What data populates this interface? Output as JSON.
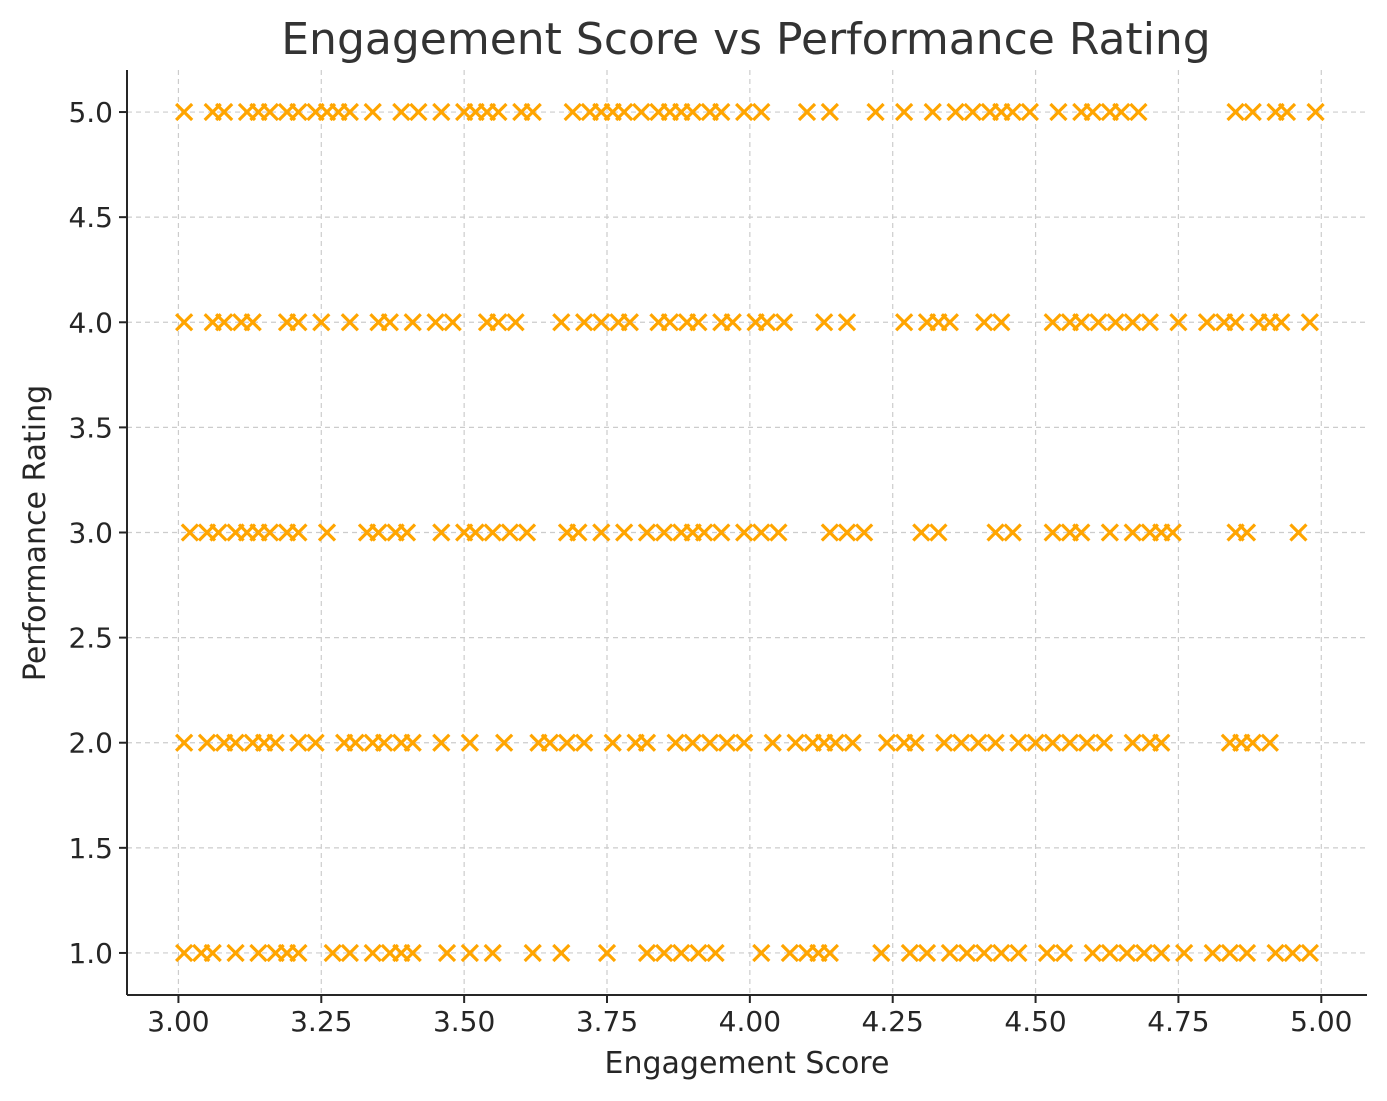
{
  "chart_data": {
    "type": "scatter",
    "title": "Engagement Score vs Performance Rating",
    "xlabel": "Engagement Score",
    "ylabel": "Performance Rating",
    "xlim": [
      2.91,
      5.08
    ],
    "ylim": [
      0.8,
      5.2
    ],
    "xticks": [
      "3.00",
      "3.25",
      "3.50",
      "3.75",
      "4.00",
      "4.25",
      "4.50",
      "4.75",
      "5.00"
    ],
    "yticks": [
      "1.0",
      "1.5",
      "2.0",
      "2.5",
      "3.0",
      "3.5",
      "4.0",
      "4.5",
      "5.0"
    ],
    "grid": true,
    "marker": "x",
    "color": "#FFA500",
    "points_by_rating": {
      "5": [
        3.01,
        3.06,
        3.08,
        3.12,
        3.14,
        3.16,
        3.19,
        3.21,
        3.24,
        3.26,
        3.28,
        3.3,
        3.34,
        3.39,
        3.42,
        3.46,
        3.5,
        3.52,
        3.54,
        3.56,
        3.6,
        3.62,
        3.69,
        3.72,
        3.74,
        3.76,
        3.78,
        3.81,
        3.84,
        3.86,
        3.88,
        3.9,
        3.93,
        3.95,
        3.99,
        4.02,
        4.1,
        4.14,
        4.22,
        4.27,
        4.32,
        4.36,
        4.39,
        4.42,
        4.44,
        4.46,
        4.49,
        4.54,
        4.58,
        4.6,
        4.63,
        4.65,
        4.68,
        4.85,
        4.88,
        4.92,
        4.94,
        4.99
      ],
      "4": [
        3.01,
        3.06,
        3.08,
        3.11,
        3.13,
        3.19,
        3.21,
        3.25,
        3.3,
        3.35,
        3.37,
        3.41,
        3.45,
        3.48,
        3.54,
        3.56,
        3.59,
        3.67,
        3.71,
        3.74,
        3.77,
        3.79,
        3.84,
        3.86,
        3.89,
        3.91,
        3.95,
        3.97,
        4.01,
        4.03,
        4.06,
        4.13,
        4.17,
        4.27,
        4.31,
        4.33,
        4.35,
        4.41,
        4.44,
        4.53,
        4.56,
        4.58,
        4.61,
        4.64,
        4.67,
        4.7,
        4.75,
        4.8,
        4.83,
        4.85,
        4.89,
        4.91,
        4.93,
        4.98
      ],
      "3": [
        3.02,
        3.05,
        3.07,
        3.1,
        3.12,
        3.14,
        3.16,
        3.19,
        3.21,
        3.26,
        3.33,
        3.35,
        3.38,
        3.4,
        3.46,
        3.5,
        3.52,
        3.55,
        3.58,
        3.61,
        3.68,
        3.7,
        3.74,
        3.78,
        3.82,
        3.85,
        3.88,
        3.9,
        3.92,
        3.95,
        3.99,
        4.02,
        4.05,
        4.14,
        4.17,
        4.2,
        4.3,
        4.33,
        4.43,
        4.46,
        4.53,
        4.56,
        4.58,
        4.63,
        4.67,
        4.7,
        4.72,
        4.74,
        4.85,
        4.87,
        4.96
      ],
      "2": [
        3.01,
        3.05,
        3.08,
        3.1,
        3.13,
        3.15,
        3.17,
        3.21,
        3.24,
        3.29,
        3.31,
        3.34,
        3.36,
        3.39,
        3.41,
        3.46,
        3.51,
        3.57,
        3.63,
        3.65,
        3.68,
        3.71,
        3.76,
        3.8,
        3.82,
        3.87,
        3.9,
        3.93,
        3.96,
        3.99,
        4.04,
        4.08,
        4.11,
        4.13,
        4.15,
        4.18,
        4.24,
        4.27,
        4.29,
        4.34,
        4.37,
        4.4,
        4.43,
        4.47,
        4.5,
        4.53,
        4.56,
        4.59,
        4.62,
        4.67,
        4.7,
        4.72,
        4.84,
        4.86,
        4.88,
        4.91
      ],
      "1": [
        3.01,
        3.04,
        3.06,
        3.1,
        3.14,
        3.17,
        3.19,
        3.21,
        3.27,
        3.3,
        3.34,
        3.37,
        3.39,
        3.41,
        3.47,
        3.51,
        3.55,
        3.62,
        3.67,
        3.75,
        3.82,
        3.85,
        3.88,
        3.91,
        3.94,
        4.02,
        4.07,
        4.1,
        4.12,
        4.14,
        4.23,
        4.28,
        4.31,
        4.35,
        4.38,
        4.41,
        4.44,
        4.47,
        4.52,
        4.55,
        4.6,
        4.63,
        4.66,
        4.69,
        4.72,
        4.76,
        4.81,
        4.84,
        4.87,
        4.92,
        4.95,
        4.98
      ]
    }
  }
}
